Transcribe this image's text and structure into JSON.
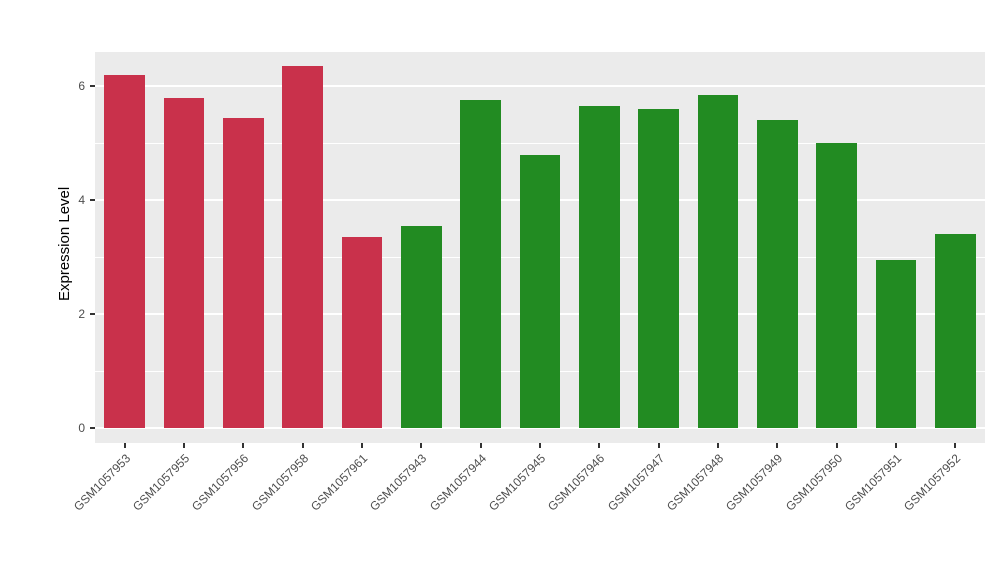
{
  "chart_data": {
    "type": "bar",
    "title": "",
    "xlabel": "",
    "ylabel": "Expression Level",
    "ylim": [
      0,
      6.6
    ],
    "yticks": [
      0,
      2,
      4,
      6
    ],
    "yticks_minor": [
      1,
      3,
      5
    ],
    "grid": "on",
    "legend": "none",
    "panel_bg": "#EBEBEB",
    "grid_color": "#FFFFFF",
    "tick_text_color": "#4D4D4D",
    "categories": [
      "GSM1057953",
      "GSM1057955",
      "GSM1057956",
      "GSM1057958",
      "GSM1057961",
      "GSM1057943",
      "GSM1057944",
      "GSM1057945",
      "GSM1057946",
      "GSM1057947",
      "GSM1057948",
      "GSM1057949",
      "GSM1057950",
      "GSM1057951",
      "GSM1057952"
    ],
    "values": [
      6.2,
      5.8,
      5.45,
      6.35,
      3.35,
      3.55,
      5.75,
      4.8,
      5.65,
      5.6,
      5.85,
      5.4,
      5.0,
      2.95,
      3.4
    ],
    "colors": [
      "#C9314B",
      "#C9314B",
      "#C9314B",
      "#C9314B",
      "#C9314B",
      "#228B22",
      "#228B22",
      "#228B22",
      "#228B22",
      "#228B22",
      "#228B22",
      "#228B22",
      "#228B22",
      "#228B22",
      "#228B22"
    ],
    "group_colors": {
      "group1": "#C9314B",
      "group2": "#228B22"
    }
  }
}
